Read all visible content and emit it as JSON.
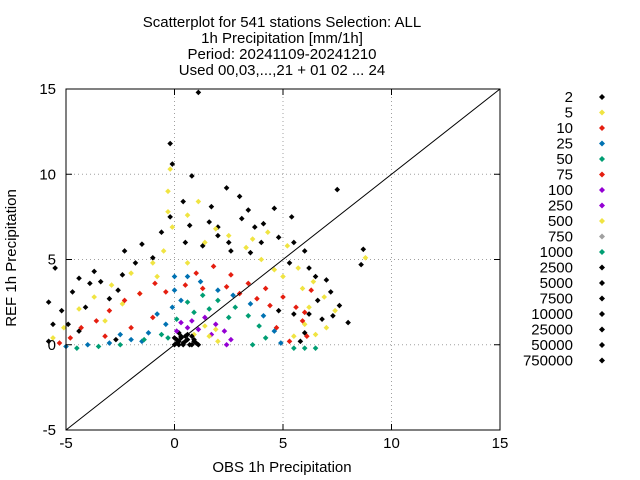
{
  "chart_data": {
    "type": "scatter",
    "title_lines": [
      "Scatterplot for  541 stations Selection: ALL",
      "1h Precipitation [mm/1h]",
      "Period: 20241109-20241210",
      "Used 00,03,...,21 + 01 02 ... 24"
    ],
    "xlabel": "OBS 1h Precipitation",
    "ylabel": "REF 1h Precipitation",
    "xlim": [
      -5,
      15
    ],
    "ylim": [
      -5,
      15
    ],
    "xticks": [
      "-5",
      "0",
      "5",
      "10",
      "15"
    ],
    "yticks": [
      "-5",
      "0",
      "5",
      "10",
      "15"
    ],
    "grid": true,
    "diagonal": true,
    "legend_placement": "right",
    "legend": [
      {
        "label": "2",
        "color": "#000000"
      },
      {
        "label": "5",
        "color": "#f0e442"
      },
      {
        "label": "10",
        "color": "#e51e10"
      },
      {
        "label": "25",
        "color": "#0072b2"
      },
      {
        "label": "50",
        "color": "#009e73"
      },
      {
        "label": "75",
        "color": "#e51e10"
      },
      {
        "label": "100",
        "color": "#9400d3"
      },
      {
        "label": "250",
        "color": "#9400d3"
      },
      {
        "label": "500",
        "color": "#f0e442"
      },
      {
        "label": "750",
        "color": "#a0a0a0"
      },
      {
        "label": "1000",
        "color": "#009e73"
      },
      {
        "label": "2500",
        "color": "#000000"
      },
      {
        "label": "5000",
        "color": "#000000"
      },
      {
        "label": "7500",
        "color": "#000000"
      },
      {
        "label": "10000",
        "color": "#000000"
      },
      {
        "label": "25000",
        "color": "#000000"
      },
      {
        "label": "50000",
        "color": "#000000"
      },
      {
        "label": "750000",
        "color": "#000000"
      }
    ],
    "series": [
      {
        "legend_index": 0,
        "points": [
          [
            1.1,
            14.8
          ],
          [
            -0.2,
            11.8
          ],
          [
            -0.1,
            10.6
          ],
          [
            0.8,
            9.9
          ],
          [
            2.4,
            9.2
          ],
          [
            3.0,
            8.7
          ],
          [
            5.4,
            7.5
          ],
          [
            7.5,
            9.1
          ],
          [
            4.6,
            8.0
          ],
          [
            1.6,
            7.2
          ],
          [
            3.4,
            7.9
          ],
          [
            1.7,
            8.1
          ],
          [
            -5.8,
            2.5
          ],
          [
            -5.5,
            4.5
          ],
          [
            -4.4,
            3.9
          ],
          [
            -3.7,
            4.3
          ],
          [
            -3.4,
            3.7
          ],
          [
            -2.3,
            5.5
          ],
          [
            -1.8,
            4.8
          ],
          [
            -2.6,
            3.2
          ],
          [
            -4.7,
            3.1
          ],
          [
            -4.1,
            2.2
          ],
          [
            -4.9,
            1.2
          ],
          [
            -5.8,
            0.2
          ],
          [
            -3.0,
            2.7
          ],
          [
            -2.4,
            4.1
          ],
          [
            -1.0,
            5.1
          ],
          [
            -0.6,
            6.6
          ],
          [
            -0.2,
            7.5
          ],
          [
            0.4,
            8.4
          ],
          [
            0.7,
            7.0
          ],
          [
            2.0,
            6.9
          ],
          [
            3.7,
            6.9
          ],
          [
            4.1,
            7.1
          ],
          [
            4.8,
            6.3
          ],
          [
            5.5,
            6.0
          ],
          [
            6.0,
            5.5
          ],
          [
            6.2,
            4.5
          ],
          [
            6.5,
            4.0
          ],
          [
            7.0,
            3.8
          ],
          [
            7.2,
            3.1
          ],
          [
            7.6,
            2.3
          ],
          [
            8.0,
            1.3
          ],
          [
            7.3,
            1.7
          ],
          [
            6.8,
            1.5
          ],
          [
            6.0,
            0.7
          ],
          [
            5.8,
            0.2
          ],
          [
            5.5,
            1.8
          ],
          [
            4.8,
            2.0
          ],
          [
            5.3,
            4.8
          ],
          [
            8.7,
            5.6
          ],
          [
            8.6,
            4.7
          ],
          [
            3.5,
            5.4
          ],
          [
            2.5,
            6.0
          ],
          [
            1.3,
            5.8
          ],
          [
            0.5,
            6.0
          ],
          [
            -1.5,
            5.9
          ],
          [
            -3.9,
            3.6
          ],
          [
            -5.2,
            2.0
          ],
          [
            -5.6,
            1.2
          ],
          [
            -4.4,
            0.8
          ],
          [
            -2.7,
            0.3
          ],
          [
            2.0,
            6.4
          ],
          [
            4.0,
            6.0
          ],
          [
            6.6,
            2.6
          ],
          [
            6.2,
            1.8
          ],
          [
            3.1,
            7.4
          ],
          [
            2.6,
            5.5
          ],
          [
            0.1,
            0.1
          ],
          [
            0.3,
            0.4
          ],
          [
            0.5,
            0.2
          ],
          [
            0.8,
            0.0
          ],
          [
            0.2,
            0.7
          ],
          [
            0.6,
            0.6
          ],
          [
            0.9,
            0.3
          ],
          [
            0.4,
            0.0
          ],
          [
            0.0,
            0.4
          ],
          [
            1.0,
            0.1
          ]
        ]
      },
      {
        "legend_index": 1,
        "points": [
          [
            -0.2,
            10.3
          ],
          [
            -0.3,
            9.0
          ],
          [
            1.1,
            8.4
          ],
          [
            -0.3,
            7.8
          ],
          [
            -0.1,
            6.9
          ],
          [
            0.6,
            7.6
          ],
          [
            1.9,
            6.8
          ],
          [
            2.5,
            6.4
          ],
          [
            3.6,
            6.2
          ],
          [
            4.3,
            6.6
          ],
          [
            5.2,
            5.8
          ],
          [
            5.7,
            4.5
          ],
          [
            6.4,
            3.7
          ],
          [
            6.9,
            2.8
          ],
          [
            7.4,
            2.0
          ],
          [
            7.0,
            1.0
          ],
          [
            6.5,
            0.6
          ],
          [
            8.8,
            5.1
          ],
          [
            -1.0,
            4.8
          ],
          [
            -2.0,
            4.2
          ],
          [
            -2.9,
            3.5
          ],
          [
            -3.7,
            2.8
          ],
          [
            -4.4,
            2.1
          ],
          [
            -5.1,
            1.0
          ],
          [
            -5.6,
            0.4
          ],
          [
            -3.2,
            1.4
          ],
          [
            -2.4,
            2.4
          ],
          [
            -1.6,
            3.0
          ],
          [
            -0.8,
            4.0
          ],
          [
            4.0,
            5.0
          ],
          [
            5.0,
            4.0
          ],
          [
            5.9,
            3.3
          ],
          [
            6.2,
            2.2
          ],
          [
            3.3,
            5.7
          ],
          [
            1.4,
            6.0
          ],
          [
            -0.5,
            5.5
          ],
          [
            0.6,
            4.8
          ],
          [
            4.6,
            4.4
          ],
          [
            6.0,
            1.2
          ],
          [
            5.5,
            0.5
          ]
        ]
      },
      {
        "legend_index": 2,
        "points": [
          [
            -5.3,
            0.1
          ],
          [
            -4.8,
            0.4
          ],
          [
            -4.3,
            1.0
          ],
          [
            -3.6,
            1.4
          ],
          [
            -3.0,
            2.0
          ],
          [
            -2.3,
            2.6
          ],
          [
            -1.6,
            3.0
          ],
          [
            -0.9,
            3.6
          ],
          [
            -0.4,
            3.1
          ],
          [
            -2.0,
            1.0
          ],
          [
            -1.0,
            1.6
          ],
          [
            -3.2,
            0.5
          ],
          [
            1.0,
            4.2
          ],
          [
            1.8,
            4.6
          ],
          [
            2.6,
            4.1
          ],
          [
            3.4,
            3.6
          ],
          [
            4.2,
            3.3
          ],
          [
            5.0,
            2.8
          ],
          [
            5.6,
            2.2
          ],
          [
            5.9,
            1.4
          ],
          [
            6.1,
            0.5
          ],
          [
            5.3,
            0.2
          ],
          [
            4.7,
            1.0
          ],
          [
            4.4,
            2.3
          ],
          [
            3.8,
            2.7
          ],
          [
            3.0,
            3.0
          ],
          [
            2.4,
            3.4
          ],
          [
            1.3,
            3.3
          ],
          [
            0.5,
            3.5
          ],
          [
            6.3,
            3.2
          ],
          [
            6.0,
            1.9
          ]
        ]
      },
      {
        "legend_index": 3,
        "points": [
          [
            -5.0,
            -0.1
          ],
          [
            -4.0,
            0.0
          ],
          [
            -3.0,
            0.1
          ],
          [
            -2.0,
            0.3
          ],
          [
            -1.2,
            0.7
          ],
          [
            -0.4,
            1.2
          ],
          [
            -0.1,
            2.2
          ],
          [
            0.0,
            3.2
          ],
          [
            0.0,
            4.0
          ],
          [
            0.6,
            4.0
          ],
          [
            1.2,
            3.7
          ],
          [
            2.0,
            3.2
          ],
          [
            2.7,
            2.9
          ],
          [
            3.5,
            2.4
          ],
          [
            4.1,
            1.7
          ],
          [
            4.6,
            0.8
          ],
          [
            4.9,
            0.1
          ],
          [
            -1.5,
            0.2
          ],
          [
            -2.5,
            0.6
          ],
          [
            -0.8,
            1.8
          ],
          [
            0.3,
            2.6
          ]
        ]
      },
      {
        "legend_index": 4,
        "points": [
          [
            -4.5,
            -0.2
          ],
          [
            -3.5,
            -0.1
          ],
          [
            -2.5,
            0.0
          ],
          [
            -1.4,
            0.3
          ],
          [
            -0.6,
            0.6
          ],
          [
            0.1,
            1.5
          ],
          [
            0.6,
            2.5
          ],
          [
            1.3,
            2.9
          ],
          [
            2.0,
            2.6
          ],
          [
            2.8,
            2.2
          ],
          [
            3.4,
            1.7
          ],
          [
            3.9,
            1.1
          ],
          [
            4.2,
            0.4
          ],
          [
            3.6,
            0.0
          ],
          [
            2.5,
            1.6
          ],
          [
            1.6,
            2.1
          ],
          [
            0.9,
            1.9
          ],
          [
            -0.3,
            0.4
          ],
          [
            5.5,
            -0.2
          ],
          [
            6.0,
            -0.2
          ],
          [
            6.5,
            -0.2
          ]
        ]
      },
      {
        "legend_index": 6,
        "points": [
          [
            0.1,
            0.8
          ],
          [
            0.3,
            1.3
          ],
          [
            0.8,
            1.4
          ],
          [
            1.4,
            1.6
          ],
          [
            1.9,
            1.2
          ],
          [
            2.3,
            0.8
          ],
          [
            2.6,
            0.3
          ],
          [
            2.4,
            0.0
          ],
          [
            1.7,
            0.6
          ],
          [
            1.1,
            0.9
          ],
          [
            0.6,
            1.0
          ]
        ]
      },
      {
        "legend_index": 1,
        "points": [
          [
            1.6,
            0.5
          ],
          [
            2.0,
            0.2
          ],
          [
            1.9,
            0.9
          ],
          [
            1.4,
            1.1
          ],
          [
            0.9,
            0.6
          ]
        ]
      },
      {
        "legend_index": 0,
        "points": [
          [
            0.0,
            0.0
          ],
          [
            0.2,
            0.2
          ],
          [
            0.4,
            0.1
          ],
          [
            0.6,
            0.3
          ],
          [
            0.3,
            0.5
          ],
          [
            0.7,
            0.0
          ],
          [
            0.1,
            0.3
          ],
          [
            0.5,
            0.5
          ],
          [
            0.9,
            0.2
          ],
          [
            1.1,
            0.0
          ],
          [
            0.8,
            0.5
          ],
          [
            0.2,
            0.0
          ]
        ]
      }
    ]
  }
}
